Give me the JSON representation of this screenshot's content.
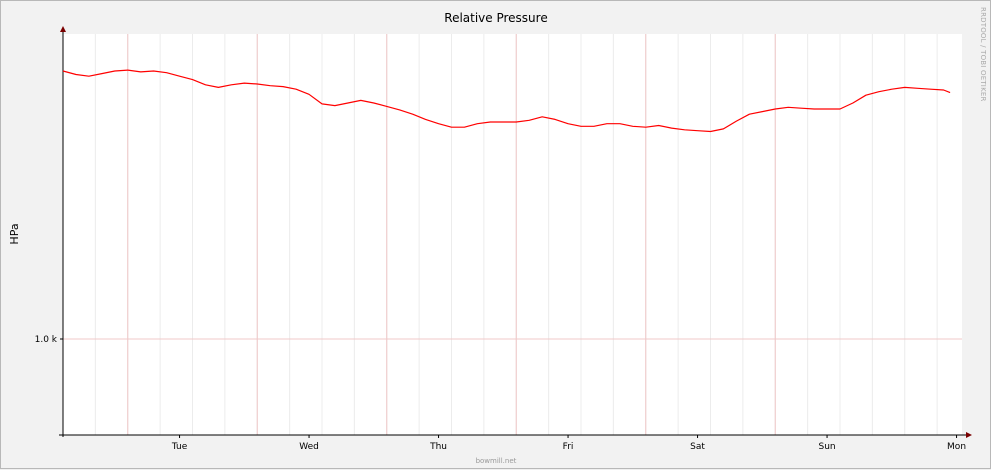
{
  "chart_data": {
    "type": "line",
    "title": "Relative Pressure",
    "ylabel": "HPa",
    "xlabel": "",
    "x_tick_labels": [
      "Tue",
      "Wed",
      "Thu",
      "Fri",
      "Sat",
      "Sun",
      "Mon"
    ],
    "y_tick_labels": [
      "1.0 k"
    ],
    "y_tick_values": [
      1000
    ],
    "ylim": [
      990,
      1036
    ],
    "xlim_days": [
      0,
      7
    ],
    "grid": true,
    "series": [
      {
        "color": "#ff0000",
        "points": [
          [
            0.0,
            1031.0
          ],
          [
            0.1,
            1030.6
          ],
          [
            0.2,
            1030.4
          ],
          [
            0.3,
            1030.7
          ],
          [
            0.4,
            1031.0
          ],
          [
            0.5,
            1031.1
          ],
          [
            0.6,
            1030.9
          ],
          [
            0.7,
            1031.0
          ],
          [
            0.8,
            1030.8
          ],
          [
            0.9,
            1030.4
          ],
          [
            1.0,
            1030.0
          ],
          [
            1.1,
            1029.4
          ],
          [
            1.2,
            1029.1
          ],
          [
            1.3,
            1029.4
          ],
          [
            1.4,
            1029.6
          ],
          [
            1.5,
            1029.5
          ],
          [
            1.6,
            1029.3
          ],
          [
            1.7,
            1029.2
          ],
          [
            1.8,
            1028.9
          ],
          [
            1.9,
            1028.3
          ],
          [
            2.0,
            1027.2
          ],
          [
            2.1,
            1027.0
          ],
          [
            2.2,
            1027.3
          ],
          [
            2.3,
            1027.6
          ],
          [
            2.4,
            1027.3
          ],
          [
            2.5,
            1026.9
          ],
          [
            2.6,
            1026.5
          ],
          [
            2.7,
            1026.0
          ],
          [
            2.8,
            1025.4
          ],
          [
            2.9,
            1024.9
          ],
          [
            3.0,
            1024.5
          ],
          [
            3.1,
            1024.5
          ],
          [
            3.2,
            1024.9
          ],
          [
            3.3,
            1025.1
          ],
          [
            3.4,
            1025.1
          ],
          [
            3.5,
            1025.1
          ],
          [
            3.6,
            1025.3
          ],
          [
            3.7,
            1025.7
          ],
          [
            3.8,
            1025.4
          ],
          [
            3.9,
            1024.9
          ],
          [
            4.0,
            1024.6
          ],
          [
            4.1,
            1024.6
          ],
          [
            4.2,
            1024.9
          ],
          [
            4.3,
            1024.9
          ],
          [
            4.4,
            1024.6
          ],
          [
            4.5,
            1024.5
          ],
          [
            4.6,
            1024.7
          ],
          [
            4.7,
            1024.4
          ],
          [
            4.8,
            1024.2
          ],
          [
            4.9,
            1024.1
          ],
          [
            5.0,
            1024.0
          ],
          [
            5.1,
            1024.3
          ],
          [
            5.2,
            1025.2
          ],
          [
            5.3,
            1026.0
          ],
          [
            5.4,
            1026.3
          ],
          [
            5.5,
            1026.6
          ],
          [
            5.6,
            1026.8
          ],
          [
            5.7,
            1026.7
          ],
          [
            5.8,
            1026.6
          ],
          [
            5.9,
            1026.6
          ],
          [
            6.0,
            1026.6
          ],
          [
            6.1,
            1027.3
          ],
          [
            6.2,
            1028.2
          ],
          [
            6.3,
            1028.6
          ],
          [
            6.4,
            1028.9
          ],
          [
            6.5,
            1029.1
          ],
          [
            6.6,
            1029.0
          ],
          [
            6.7,
            1028.9
          ],
          [
            6.8,
            1028.8
          ],
          [
            6.85,
            1028.5
          ]
        ]
      }
    ]
  },
  "side_text": "RRDTOOL / TOBI OETIKER",
  "footer": "bowmill.net"
}
